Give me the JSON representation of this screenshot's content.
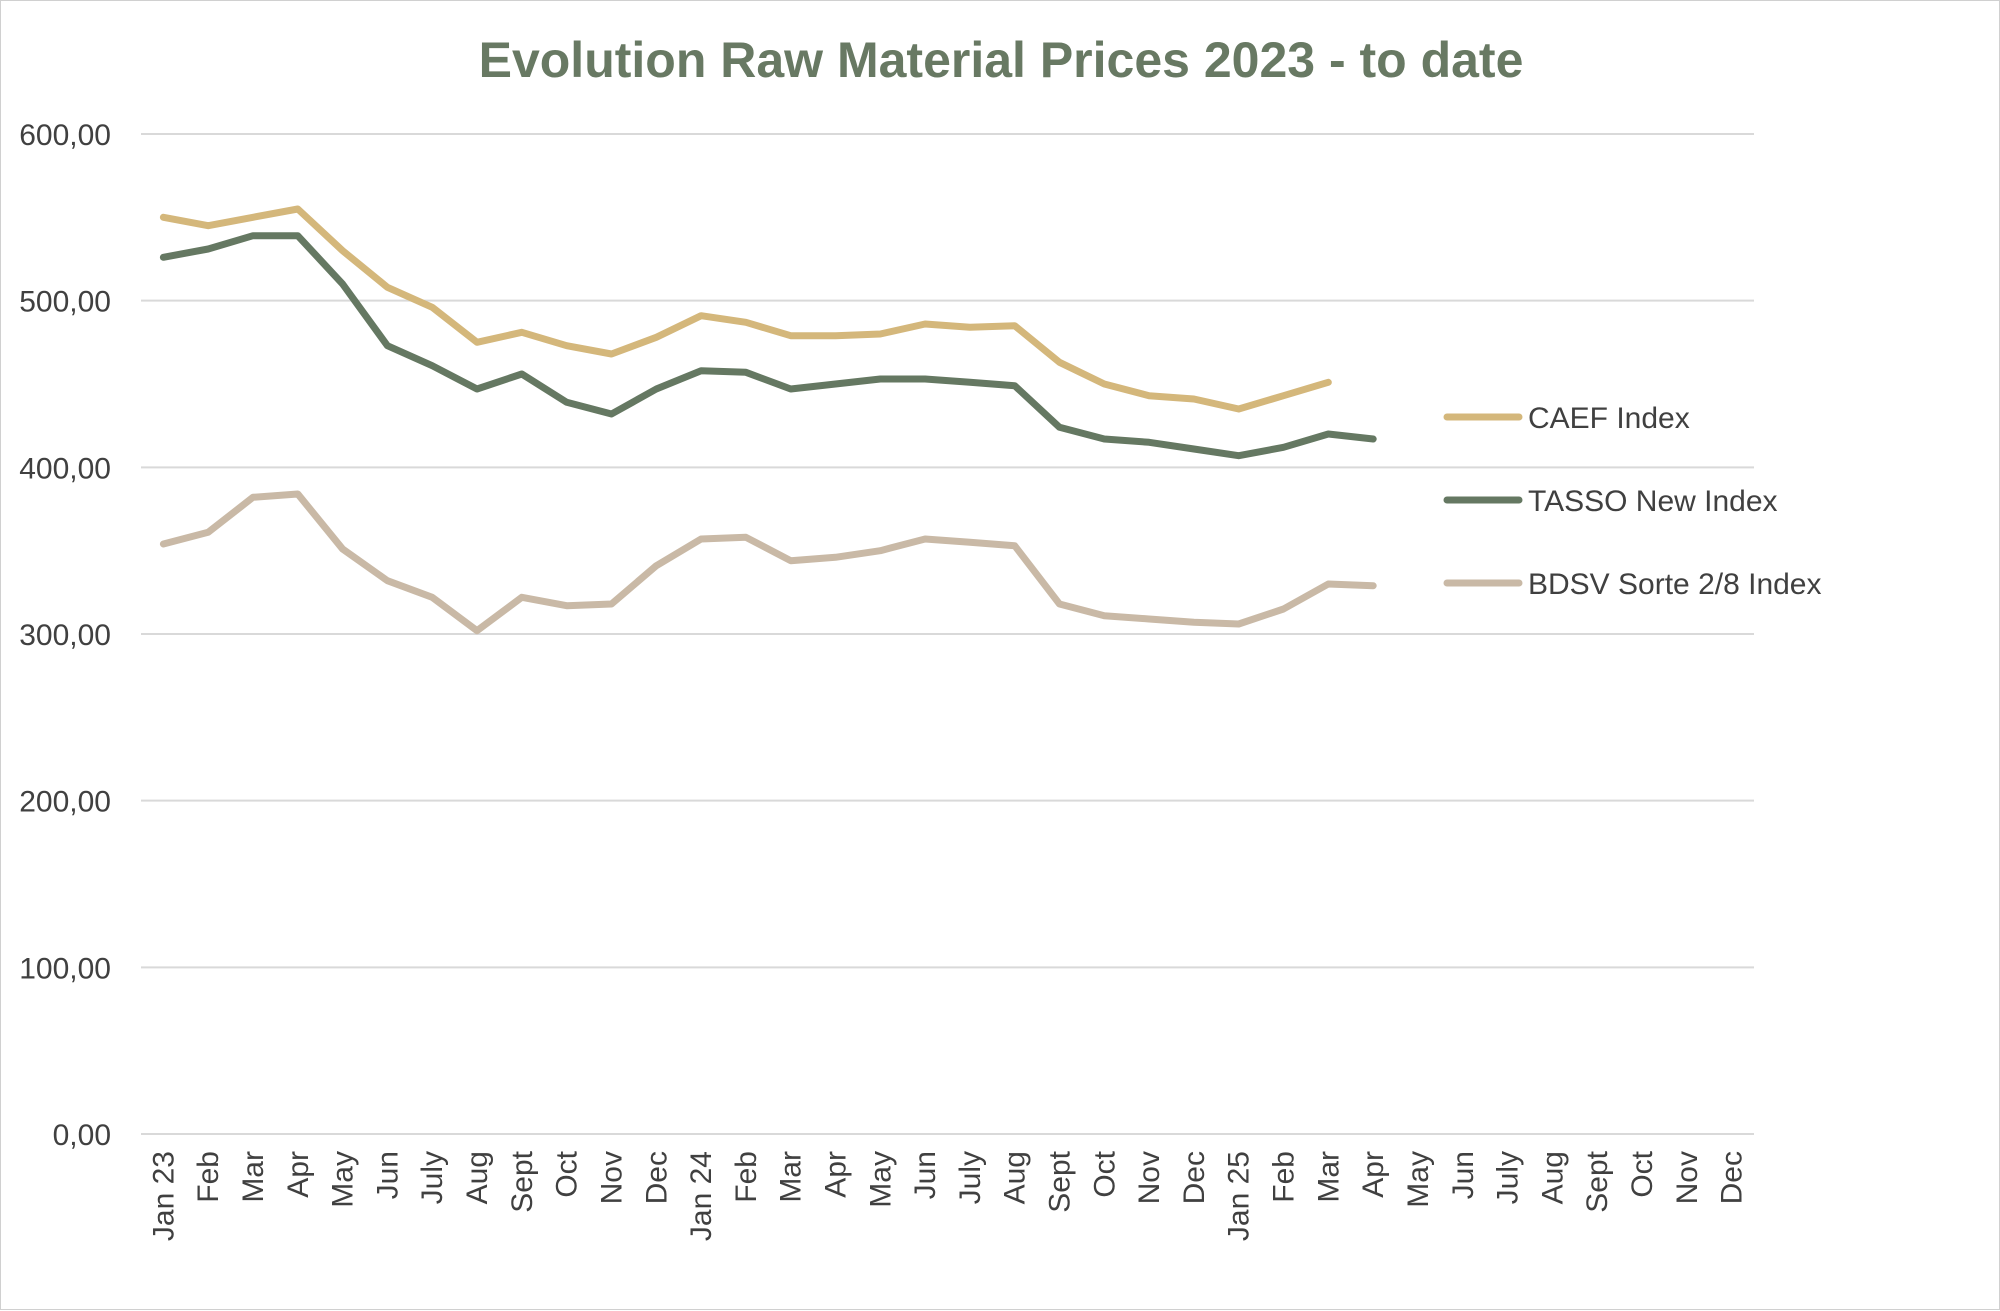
{
  "chart_data": {
    "type": "line",
    "title": "Evolution Raw Material Prices 2023 - to date",
    "xlabel": "",
    "ylabel": "",
    "ylim": [
      0,
      600
    ],
    "y_ticks": [
      0,
      100,
      200,
      300,
      400,
      500,
      600
    ],
    "y_tick_labels": [
      "0,00",
      "100,00",
      "200,00",
      "300,00",
      "400,00",
      "500,00",
      "600,00"
    ],
    "grid": true,
    "legend_position": "right",
    "categories": [
      "Jan 23",
      "Feb",
      "Mar",
      "Apr",
      "May",
      "Jun",
      "July",
      "Aug",
      "Sept",
      "Oct",
      "Nov",
      "Dec",
      "Jan 24",
      "Feb",
      "Mar",
      "Apr",
      "May",
      "Jun",
      "July",
      "Aug",
      "Sept",
      "Oct",
      "Nov",
      "Dec",
      "Jan 25",
      "Feb",
      "Mar",
      "Apr",
      "May",
      "Jun",
      "July",
      "Aug",
      "Sept",
      "Oct",
      "Nov",
      "Dec"
    ],
    "series": [
      {
        "name": "CAEF Index",
        "color": "#d4b77b",
        "values": [
          550,
          545,
          550,
          555,
          530,
          508,
          496,
          475,
          481,
          473,
          468,
          478,
          491,
          487,
          479,
          479,
          480,
          486,
          484,
          485,
          463,
          450,
          443,
          441,
          435,
          443,
          451,
          null,
          null,
          null,
          null,
          null,
          null,
          null,
          null,
          null
        ]
      },
      {
        "name": "TASSO New Index",
        "color": "#657862",
        "values": [
          526,
          531,
          539,
          539,
          510,
          473,
          461,
          447,
          456,
          439,
          432,
          447,
          458,
          457,
          447,
          450,
          453,
          453,
          451,
          449,
          424,
          417,
          415,
          411,
          407,
          412,
          420,
          417,
          null,
          null,
          null,
          null,
          null,
          null,
          null,
          null
        ]
      },
      {
        "name": "BDSV Sorte 2/8 Index",
        "color": "#c9b9a6",
        "values": [
          354,
          361,
          382,
          384,
          351,
          332,
          322,
          302,
          322,
          317,
          318,
          341,
          357,
          358,
          344,
          346,
          350,
          357,
          355,
          353,
          318,
          311,
          309,
          307,
          306,
          315,
          330,
          329,
          null,
          null,
          null,
          null,
          null,
          null,
          null,
          null
        ]
      }
    ],
    "colors": {
      "title": "#687963",
      "grid": "#d9d9d9",
      "axis_text": "#404040"
    }
  }
}
